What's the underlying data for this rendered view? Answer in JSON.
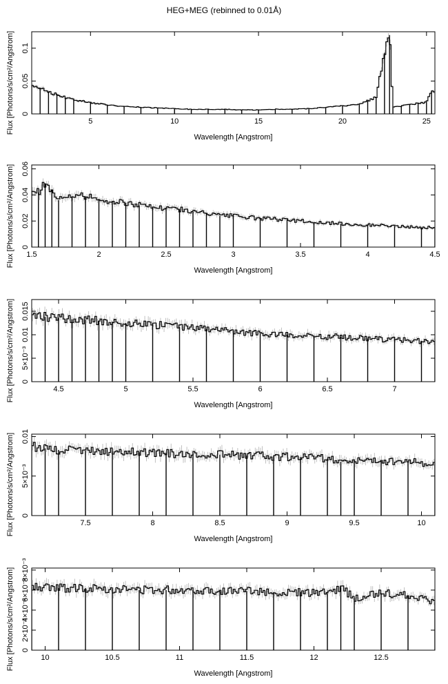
{
  "figure": {
    "title": "HEG+MEG (rebinned to 0.01Å)"
  },
  "colors": {
    "data": "#000000",
    "error_bars": "#b0b0b0",
    "background": "#ffffff"
  },
  "chart_data": [
    {
      "type": "line",
      "style": "histogram",
      "title": "HEG+MEG (rebinned to 0.01Å)",
      "xlabel": "Wavelength [Angstrom]",
      "ylabel": "Flux [Photons/s/cm²/Angstrom]",
      "xlim": [
        1.5,
        25.5
      ],
      "ylim": [
        0,
        0.125
      ],
      "xticks": [
        5,
        10,
        15,
        20,
        25
      ],
      "xtick_labels": [
        "5",
        "10",
        "15",
        "20",
        "25"
      ],
      "yticks": [
        0,
        0.05,
        0.1
      ],
      "ytick_labels": [
        "0",
        "0.05",
        "0.1"
      ],
      "grid": false,
      "x": [
        1.5,
        2,
        2.5,
        3,
        3.5,
        4,
        5,
        6,
        7,
        8,
        9,
        10,
        11,
        12,
        13,
        14,
        15,
        16,
        17,
        18,
        19,
        20,
        21,
        21.5,
        22,
        22.5,
        22.8,
        23,
        23.5,
        24,
        24.5,
        25,
        25.3
      ],
      "y": [
        0.044,
        0.04,
        0.034,
        0.029,
        0.025,
        0.022,
        0.017,
        0.014,
        0.011,
        0.01,
        0.009,
        0.008,
        0.007,
        0.007,
        0.007,
        0.006,
        0.006,
        0.007,
        0.007,
        0.008,
        0.01,
        0.012,
        0.014,
        0.02,
        0.025,
        0.093,
        0.12,
        0.01,
        0.012,
        0.014,
        0.016,
        0.018,
        0.034
      ],
      "annotations": []
    },
    {
      "type": "line",
      "style": "histogram",
      "xlabel": "Wavelength [Angstrom]",
      "ylabel": "Flux [Photons/s/cm²/Angstrom]",
      "xlim": [
        1.5,
        4.5
      ],
      "ylim": [
        0,
        0.063
      ],
      "xticks": [
        1.5,
        2,
        2.5,
        3,
        3.5,
        4,
        4.5
      ],
      "xtick_labels": [
        "1.5",
        "2",
        "2.5",
        "3",
        "3.5",
        "4",
        "4.5"
      ],
      "yticks": [
        0,
        0.02,
        0.04,
        0.06
      ],
      "ytick_labels": [
        "0",
        "0.02",
        "0.04",
        "0.06"
      ],
      "grid": false,
      "x": [
        1.5,
        1.55,
        1.6,
        1.65,
        1.7,
        1.8,
        1.9,
        2.0,
        2.1,
        2.2,
        2.3,
        2.4,
        2.5,
        2.6,
        2.7,
        2.8,
        2.9,
        3.0,
        3.2,
        3.4,
        3.6,
        3.8,
        4.0,
        4.2,
        4.4,
        4.5
      ],
      "y": [
        0.043,
        0.042,
        0.049,
        0.044,
        0.036,
        0.039,
        0.039,
        0.037,
        0.035,
        0.034,
        0.032,
        0.031,
        0.03,
        0.029,
        0.027,
        0.026,
        0.024,
        0.024,
        0.022,
        0.021,
        0.019,
        0.018,
        0.017,
        0.016,
        0.015,
        0.015
      ],
      "annotations": []
    },
    {
      "type": "line",
      "style": "histogram",
      "xlabel": "Wavelength [Angstrom]",
      "ylabel": "Flux [Photons/s/cm²/Angstrom]",
      "xlim": [
        4.3,
        7.3
      ],
      "ylim": [
        0,
        0.0175
      ],
      "xticks": [
        4.5,
        5,
        5.5,
        6,
        6.5,
        7
      ],
      "xtick_labels": [
        "4.5",
        "5",
        "5.5",
        "6",
        "6.5",
        "7"
      ],
      "yticks": [
        0,
        0.005,
        0.01,
        0.015
      ],
      "ytick_labels": [
        "0",
        "5×10⁻³",
        "0.01",
        "0.015"
      ],
      "grid": false,
      "x": [
        4.3,
        4.4,
        4.5,
        4.6,
        4.7,
        4.8,
        4.9,
        5.0,
        5.2,
        5.4,
        5.6,
        5.8,
        6.0,
        6.2,
        6.4,
        6.6,
        6.8,
        7.0,
        7.2,
        7.3
      ],
      "y": [
        0.0142,
        0.0138,
        0.0136,
        0.0133,
        0.0132,
        0.013,
        0.0128,
        0.0125,
        0.0122,
        0.0116,
        0.0112,
        0.0107,
        0.0103,
        0.01,
        0.0097,
        0.0095,
        0.0092,
        0.0089,
        0.0087,
        0.0085
      ],
      "annotations": []
    },
    {
      "type": "line",
      "style": "histogram",
      "xlabel": "Wavelength [Angstrom]",
      "ylabel": "Flux [Photons/s/cm²/Angstrom]",
      "xlim": [
        7.1,
        10.1
      ],
      "ylim": [
        0,
        0.0103
      ],
      "xticks": [
        7.5,
        8,
        8.5,
        9,
        9.5,
        10
      ],
      "xtick_labels": [
        "7.5",
        "8",
        "8.5",
        "9",
        "9.5",
        "10"
      ],
      "yticks": [
        0,
        0.005,
        0.01
      ],
      "ytick_labels": [
        "0",
        "5×10⁻³",
        "0.01"
      ],
      "grid": false,
      "x": [
        7.1,
        7.2,
        7.3,
        7.5,
        7.7,
        7.9,
        8.1,
        8.3,
        8.5,
        8.7,
        8.9,
        9.1,
        9.3,
        9.4,
        9.5,
        9.7,
        9.9,
        10.1
      ],
      "y": [
        0.0087,
        0.0085,
        0.0083,
        0.0082,
        0.0081,
        0.008,
        0.0079,
        0.0078,
        0.0077,
        0.0076,
        0.0075,
        0.0074,
        0.0072,
        0.0068,
        0.0071,
        0.0069,
        0.0068,
        0.0066
      ],
      "annotations": []
    },
    {
      "type": "line",
      "style": "histogram",
      "xlabel": "Wavelength [Angstrom]",
      "ylabel": "Flux [Photons/s/cm²/Angstrom]",
      "xlim": [
        9.9,
        12.9
      ],
      "ylim": [
        0,
        0.0082
      ],
      "xticks": [
        10,
        10.5,
        11,
        11.5,
        12,
        12.5
      ],
      "xtick_labels": [
        "10",
        "10.5",
        "11",
        "11.5",
        "12",
        "12.5"
      ],
      "yticks": [
        0,
        0.002,
        0.004,
        0.006,
        0.008
      ],
      "ytick_labels": [
        "0",
        "2×10⁻³",
        "4×10⁻³",
        "6×10⁻³",
        "8×10⁻³"
      ],
      "grid": false,
      "x": [
        9.9,
        10.1,
        10.3,
        10.5,
        10.7,
        10.9,
        11.1,
        11.3,
        11.5,
        11.7,
        11.9,
        12.1,
        12.2,
        12.3,
        12.5,
        12.7,
        12.9
      ],
      "y": [
        0.0063,
        0.0062,
        0.0062,
        0.0061,
        0.006,
        0.006,
        0.006,
        0.0059,
        0.0059,
        0.0058,
        0.0058,
        0.0057,
        0.0063,
        0.0052,
        0.0057,
        0.0055,
        0.0048
      ],
      "annotations": []
    }
  ]
}
